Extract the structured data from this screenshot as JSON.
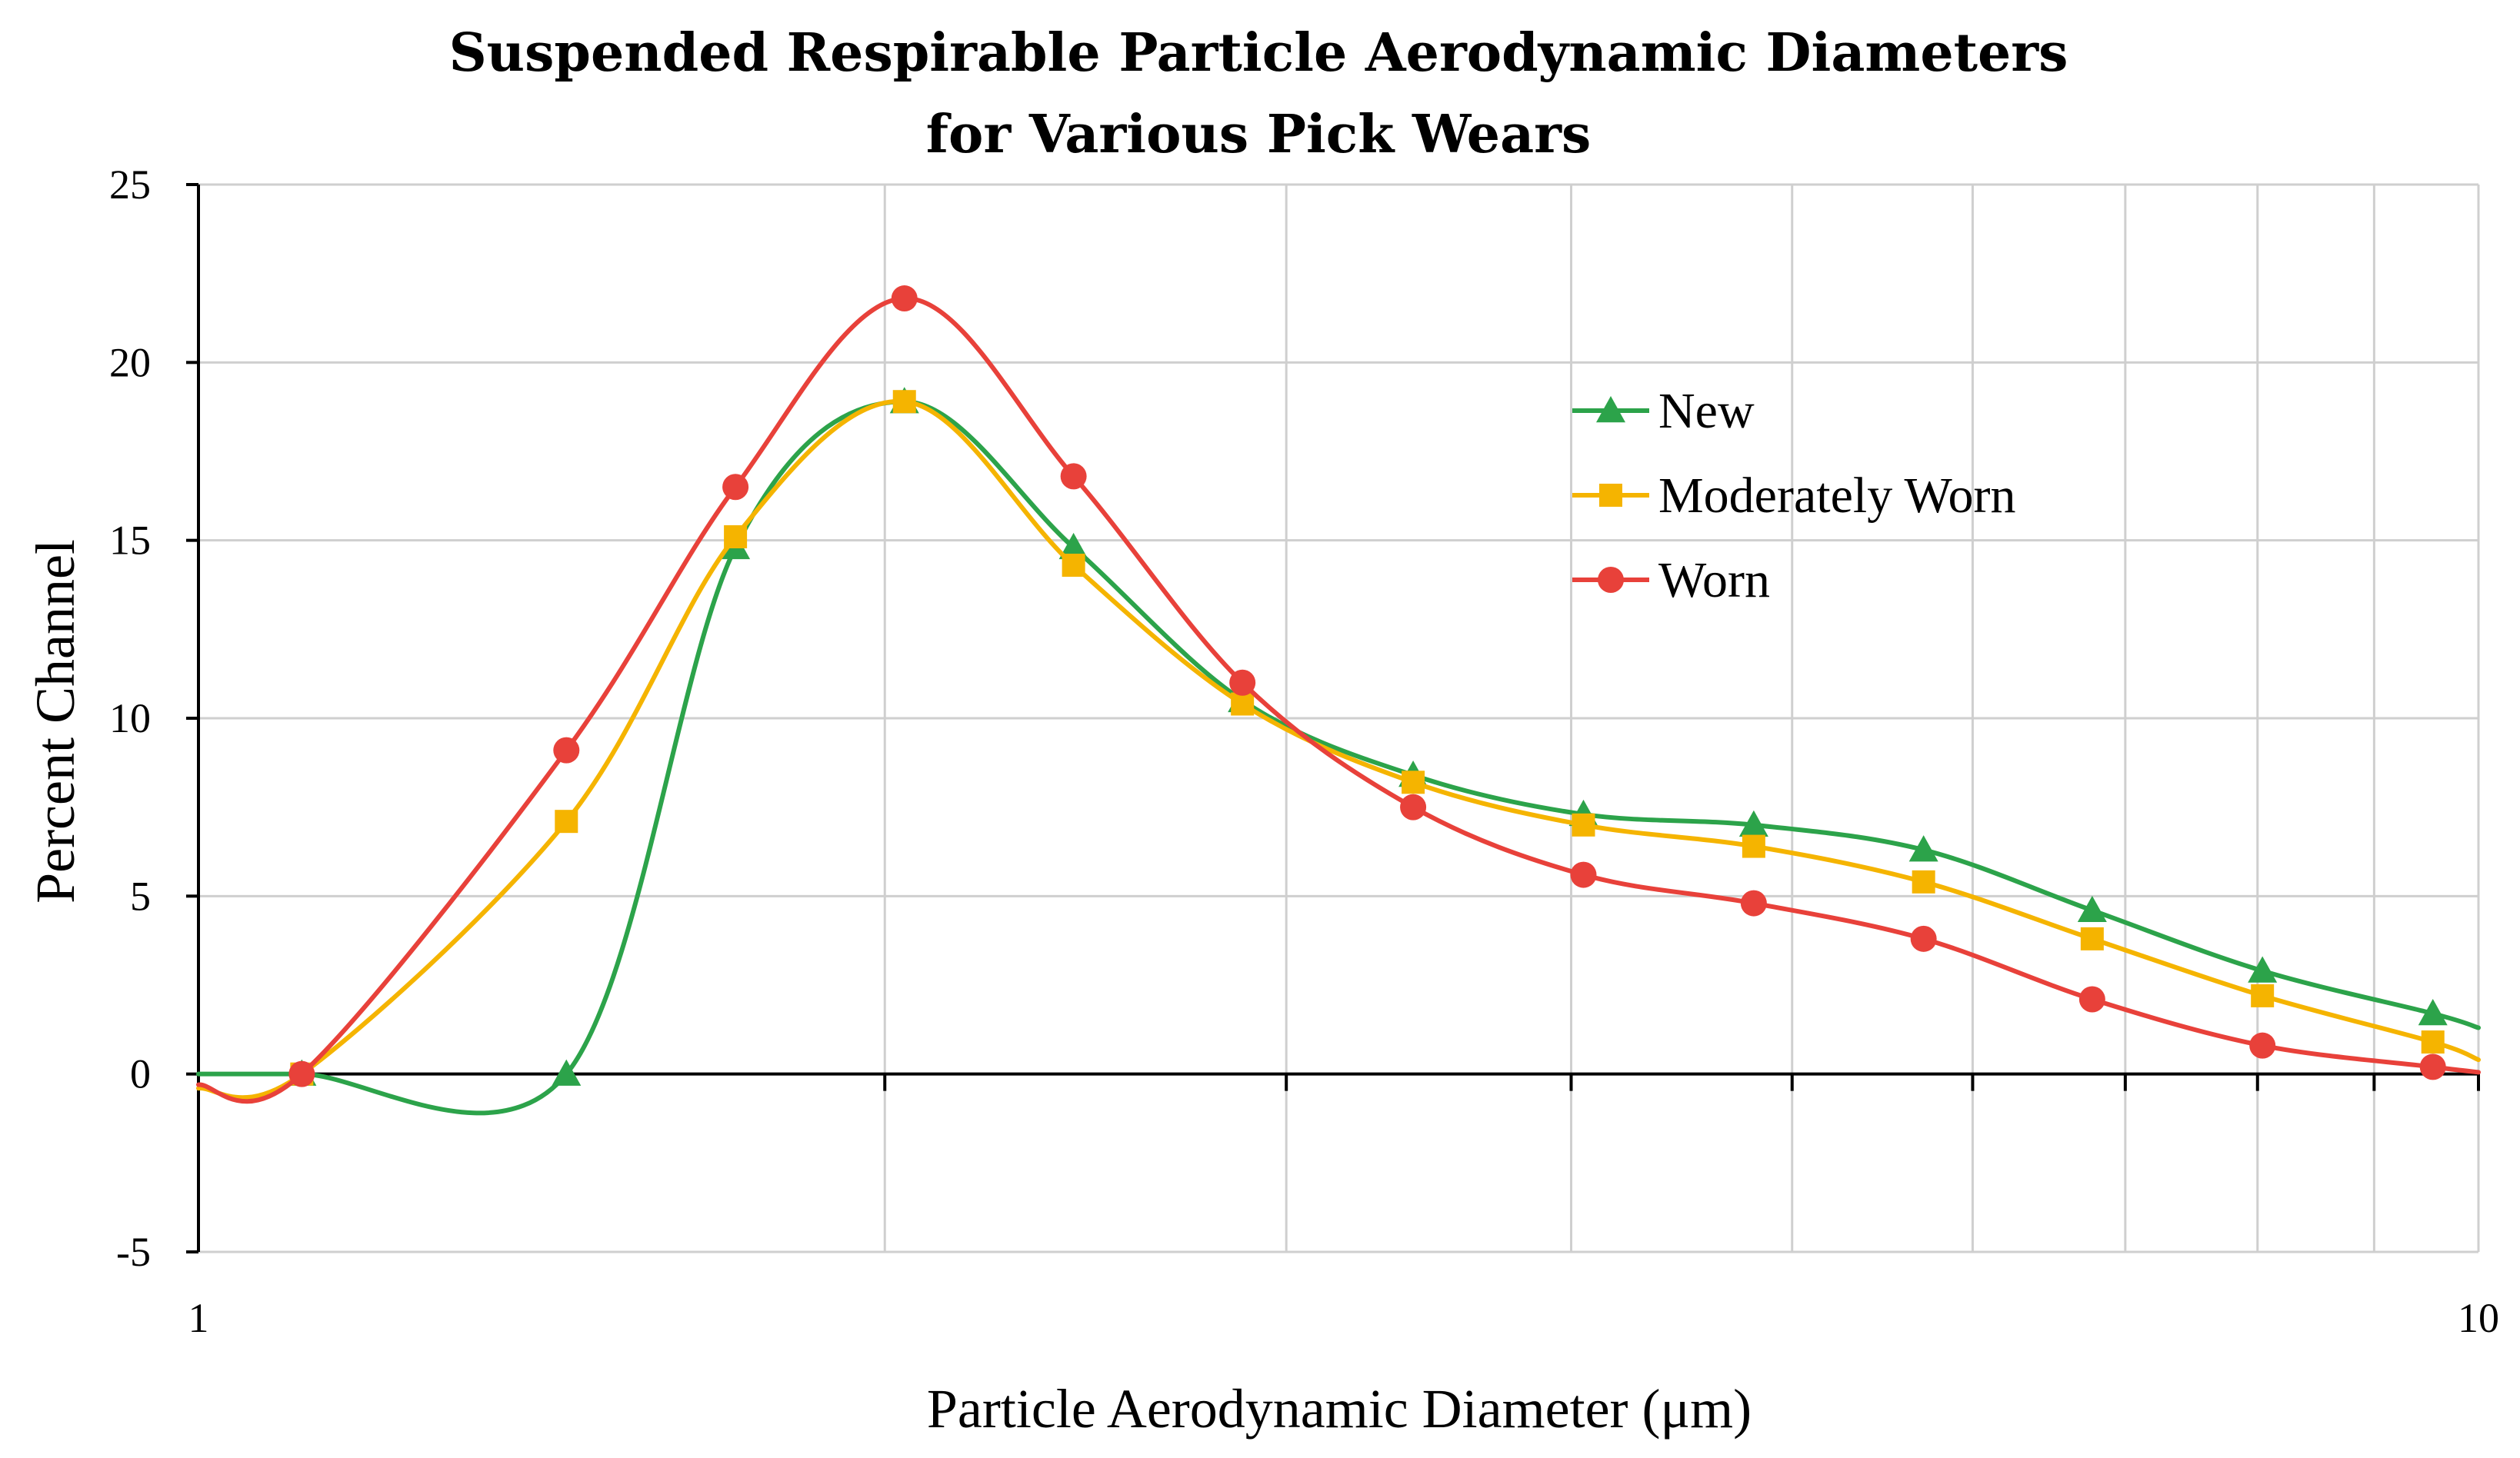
{
  "chart_data": {
    "type": "line",
    "title": [
      "Suspended Respirable Particle Aerodynamic Diameters",
      "for Various Pick Wears"
    ],
    "xlabel": "Particle Aerodynamic Diameter (μm)",
    "ylabel": "Percent Channel",
    "xscale": "log",
    "xlim": [
      1,
      10
    ],
    "ylim": [
      -5,
      25
    ],
    "yticks": [
      -5,
      0,
      5,
      10,
      15,
      20,
      25
    ],
    "ytick_labels": [
      "-5",
      "0",
      "5",
      "10",
      "15",
      "20",
      "25"
    ],
    "xtick_labels": [
      "1",
      "10"
    ],
    "x_minor_gridlines": [
      2,
      3,
      4,
      5,
      6,
      7,
      8,
      9
    ],
    "grid": true,
    "legend_position": "upper-right-inside",
    "series": [
      {
        "name": "New",
        "color": "#2ca34a",
        "marker": "triangle",
        "x": [
          1,
          1.11,
          1.45,
          1.72,
          2.04,
          2.42,
          2.87,
          3.41,
          4.05,
          4.81,
          5.71,
          6.77,
          8.04,
          9.55,
          10
        ],
        "values": [
          0,
          0,
          0,
          14.8,
          18.9,
          14.8,
          10.5,
          8.4,
          7.3,
          7.0,
          6.3,
          4.6,
          2.9,
          1.7,
          1.3
        ]
      },
      {
        "name": "Moderately Worn",
        "color": "#f5b400",
        "marker": "square",
        "x": [
          1,
          1.11,
          1.45,
          1.72,
          2.04,
          2.42,
          2.87,
          3.41,
          4.05,
          4.81,
          5.71,
          6.77,
          8.04,
          9.55,
          10
        ],
        "values": [
          -0.4,
          0,
          7.1,
          15.1,
          18.9,
          14.3,
          10.4,
          8.2,
          7.0,
          6.4,
          5.4,
          3.8,
          2.2,
          0.9,
          0.4
        ]
      },
      {
        "name": "Worn",
        "color": "#e8413a",
        "marker": "circle",
        "x": [
          1,
          1.11,
          1.45,
          1.72,
          2.04,
          2.42,
          2.87,
          3.41,
          4.05,
          4.81,
          5.71,
          6.77,
          8.04,
          9.55,
          10
        ],
        "values": [
          -0.3,
          0,
          9.1,
          16.5,
          21.8,
          16.8,
          11.0,
          7.5,
          5.6,
          4.8,
          3.8,
          2.1,
          0.8,
          0.2,
          0.05
        ]
      }
    ],
    "marker_counts": 13
  }
}
